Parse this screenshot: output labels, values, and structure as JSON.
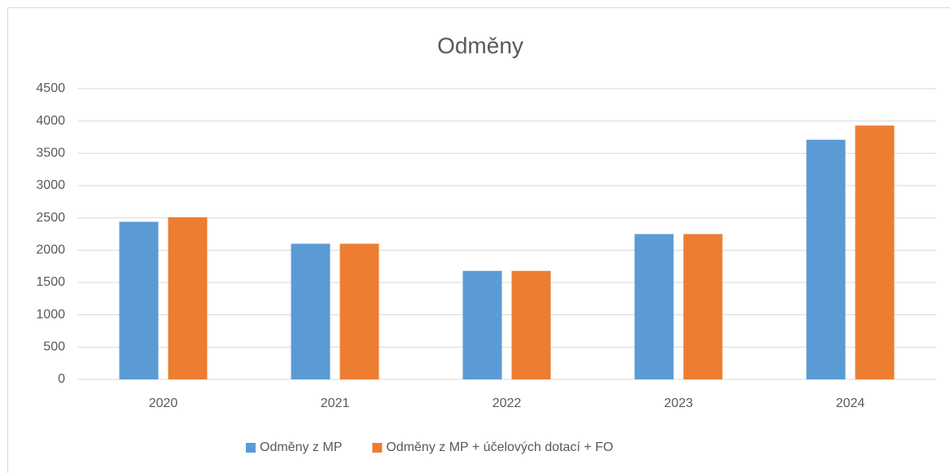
{
  "chart_data": {
    "type": "bar",
    "title": "Odměny",
    "categories": [
      "2020",
      "2021",
      "2022",
      "2023",
      "2024"
    ],
    "series": [
      {
        "name": "Odměny z MP",
        "color": "#5b9bd5",
        "values": [
          2440,
          2100,
          1680,
          2250,
          3710
        ]
      },
      {
        "name": "Odměny z MP + účelových dotací + FO",
        "color": "#ed7d31",
        "values": [
          2510,
          2100,
          1680,
          2250,
          3930
        ]
      }
    ],
    "ylim": [
      0,
      4500
    ],
    "yticks": [
      0,
      500,
      1000,
      1500,
      2000,
      2500,
      3000,
      3500,
      4000,
      4500
    ],
    "grid": true,
    "legend": "bottom"
  }
}
